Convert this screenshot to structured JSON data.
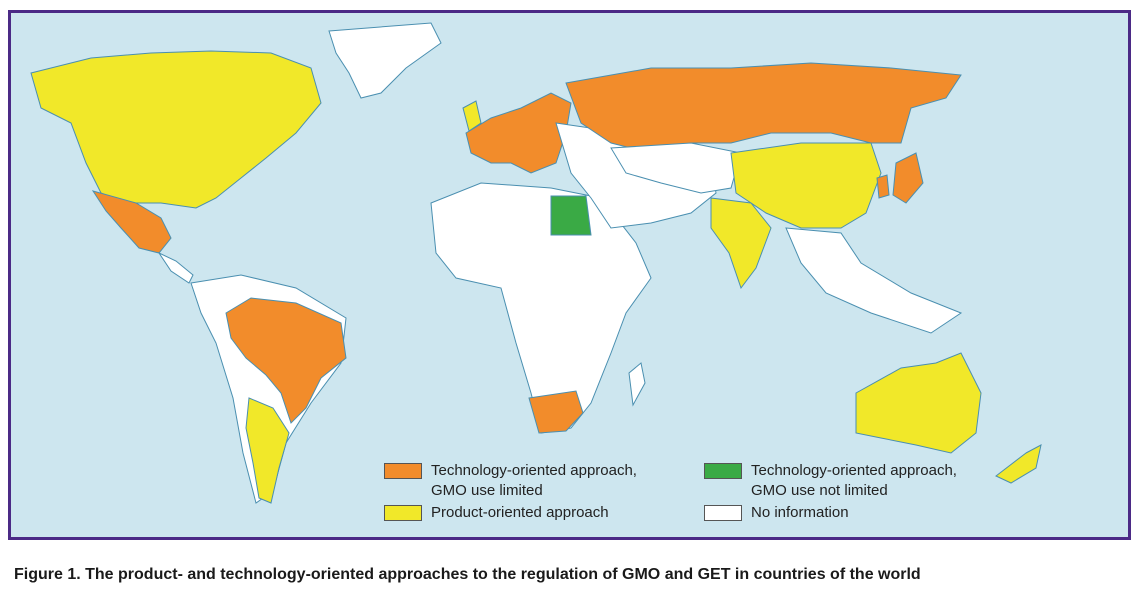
{
  "colors": {
    "tech_limited": "#f28c2b",
    "tech_not_limited": "#3aaa45",
    "product": "#f1e829",
    "no_info": "#ffffff",
    "ocean": "#cde6ef",
    "frame": "#4b2a86"
  },
  "legend": [
    {
      "key": "tech_limited",
      "label": "Technology-oriented approach,\nGMO use limited"
    },
    {
      "key": "tech_not_limited",
      "label": "Technology-oriented approach,\nGMO use not limited"
    },
    {
      "key": "product",
      "label": "Product-oriented approach"
    },
    {
      "key": "no_info",
      "label": "No information"
    }
  ],
  "caption": "Figure 1. The product- and technology-oriented approaches to the regulation of GMO and GET in countries of the world"
}
